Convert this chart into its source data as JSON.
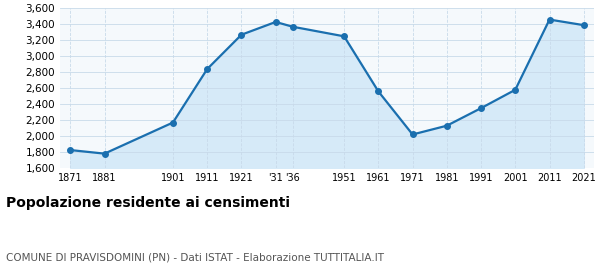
{
  "years": [
    1871,
    1881,
    1901,
    1911,
    1921,
    1931,
    1936,
    1951,
    1961,
    1971,
    1981,
    1991,
    2001,
    2011,
    2021
  ],
  "population": [
    1825,
    1780,
    2170,
    2840,
    3270,
    3430,
    3370,
    3250,
    2560,
    2020,
    2130,
    2350,
    2580,
    3460,
    3390
  ],
  "line_color": "#1a6faf",
  "fill_color": "#d6eaf8",
  "marker_color": "#1a6faf",
  "bg_color": "#f5f9fc",
  "grid_color": "#c8daea",
  "ylim": [
    1600,
    3600
  ],
  "yticks": [
    1600,
    1800,
    2000,
    2200,
    2400,
    2600,
    2800,
    3000,
    3200,
    3400,
    3600
  ],
  "title": "Popolazione residente ai censimenti",
  "subtitle": "COMUNE DI PRAVISDOMINI (PN) - Dati ISTAT - Elaborazione TUTTITALIA.IT",
  "title_fontsize": 10,
  "subtitle_fontsize": 7.5
}
